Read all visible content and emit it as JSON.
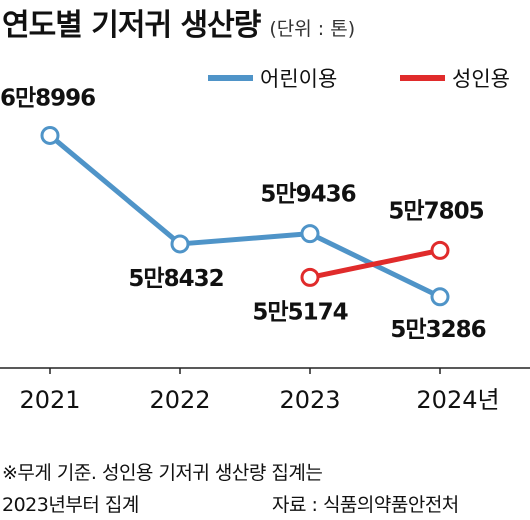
{
  "header": {
    "title": "연도별 기저귀 생산량",
    "unit": "(단위 : 톤)"
  },
  "chart_data": {
    "type": "line",
    "categories": [
      "2021",
      "2022",
      "2023",
      "2024년"
    ],
    "ylim": [
      52000,
      70500
    ],
    "grid": false,
    "legend_position": "top-right",
    "colors": {
      "baby": "#4f94c8",
      "adult": "#e02b2b",
      "axis": "#222222"
    },
    "series": [
      {
        "name": "어린이용",
        "color_key": "baby",
        "values": [
          68996,
          58432,
          59436,
          53286
        ],
        "labels": [
          "6만8996",
          "5만8432",
          "5만9436",
          "5만3286"
        ]
      },
      {
        "name": "성인용",
        "color_key": "adult",
        "values": [
          null,
          null,
          55174,
          57805
        ],
        "labels": [
          null,
          null,
          "5만5174",
          "5만7805"
        ]
      }
    ]
  },
  "footnotes": {
    "note_line1": "※무게 기준. 성인용 기저귀 생산량 집계는",
    "note_line2": "2023년부터 집계",
    "source": "자료 : 식품의약품안전처"
  }
}
